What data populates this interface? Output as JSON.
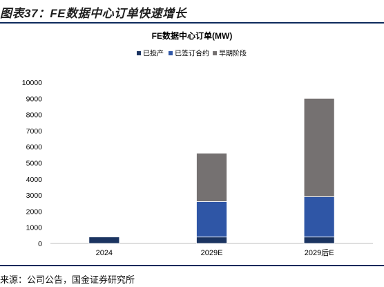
{
  "figure": {
    "title": "图表37：FE数据中心订单快速增长",
    "source": "来源：公司公告，国金证券研究所"
  },
  "chart_data": {
    "type": "bar",
    "stacked": true,
    "title": "FE数据中心订单(MW)",
    "xlabel": "",
    "ylabel": "",
    "categories": [
      "2024",
      "2029E",
      "2029后E"
    ],
    "series": [
      {
        "name": "已投产",
        "color": "#1b3461",
        "values": [
          400,
          400,
          400
        ]
      },
      {
        "name": "已签订合约",
        "color": "#2f56a6",
        "values": [
          0,
          2200,
          2500
        ]
      },
      {
        "name": "早期阶段",
        "color": "#757171",
        "values": [
          0,
          3000,
          6100
        ]
      }
    ],
    "ylim": [
      0,
      10000
    ],
    "yticks": [
      0,
      1000,
      2000,
      3000,
      4000,
      5000,
      6000,
      7000,
      8000,
      9000,
      10000
    ],
    "grid": false,
    "legend_position": "top"
  }
}
